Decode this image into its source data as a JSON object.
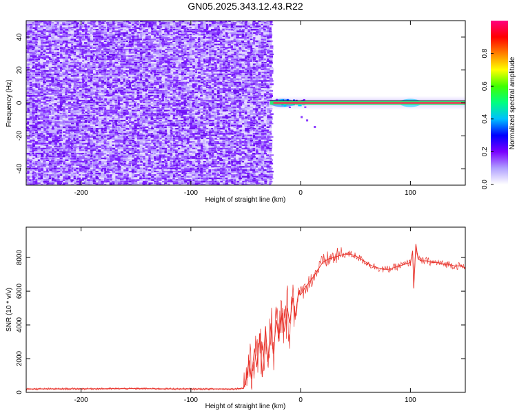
{
  "title": "GN05.2025.343.12.43.R22",
  "chart_data": [
    {
      "type": "heatmap",
      "xlabel": "Height of straight line (km)",
      "ylabel": "Frequency (Hz)",
      "xlim": [
        -250,
        150
      ],
      "ylim": [
        -50,
        50
      ],
      "xticks": [
        -200,
        -100,
        0,
        100
      ],
      "yticks": [
        -40,
        -20,
        0,
        20,
        40
      ],
      "noise_region_x": [
        -250,
        -28
      ],
      "noise_level": "low normalized amplitude (purple/violet) across all frequencies",
      "signal_line": {
        "frequency": 0,
        "x_start": -28,
        "x_end": 150,
        "peak_amplitude": 1.0,
        "notes": "narrow high-amplitude band near 0 Hz; green/cyan blooms near x=-25..-5 and x=~100"
      },
      "grid": false
    },
    {
      "type": "colorbar",
      "label": "Normalized spectral amplitude",
      "range": [
        0,
        1
      ],
      "ticks": [
        0.0,
        0.2,
        0.4,
        0.6,
        0.8
      ],
      "colormap": [
        "#ffffff",
        "#b0a0ff",
        "#7a00ff",
        "#0000ff",
        "#00c0ff",
        "#00ff80",
        "#40ff00",
        "#ffff00",
        "#ff8000",
        "#ff0000",
        "#ff0080"
      ]
    },
    {
      "type": "line",
      "xlabel": "Height of straight line (km)",
      "ylabel": "SNR (10 * v/v)",
      "xlim": [
        -250,
        150
      ],
      "ylim": [
        0,
        9800
      ],
      "xticks": [
        -200,
        -100,
        0,
        100
      ],
      "yticks": [
        0,
        2000,
        4000,
        6000,
        8000
      ],
      "series_color": "#e8322a",
      "x": [
        -250,
        -200,
        -150,
        -100,
        -60,
        -52,
        -50,
        -47,
        -45,
        -42,
        -40,
        -37,
        -35,
        -32,
        -30,
        -27,
        -25,
        -22,
        -20,
        -17,
        -15,
        -12,
        -10,
        -7,
        -5,
        -2,
        0,
        5,
        10,
        15,
        20,
        25,
        30,
        35,
        40,
        45,
        50,
        55,
        60,
        65,
        70,
        75,
        80,
        85,
        90,
        95,
        100,
        102,
        103,
        105,
        107,
        110,
        115,
        120,
        125,
        130,
        135,
        140,
        145,
        150
      ],
      "y": [
        200,
        210,
        220,
        200,
        200,
        250,
        700,
        1900,
        800,
        2600,
        1500,
        3500,
        900,
        3900,
        1800,
        4100,
        2300,
        4300,
        3200,
        4700,
        3600,
        5000,
        4100,
        5600,
        4500,
        5900,
        5800,
        6300,
        6700,
        7200,
        7700,
        7900,
        8000,
        8100,
        8200,
        8200,
        8100,
        7900,
        7700,
        7500,
        7400,
        7300,
        7300,
        7400,
        7500,
        7600,
        7700,
        8400,
        6200,
        8800,
        7900,
        7800,
        7800,
        7700,
        7700,
        7600,
        7600,
        7500,
        7500,
        7400
      ],
      "grid": false
    }
  ]
}
